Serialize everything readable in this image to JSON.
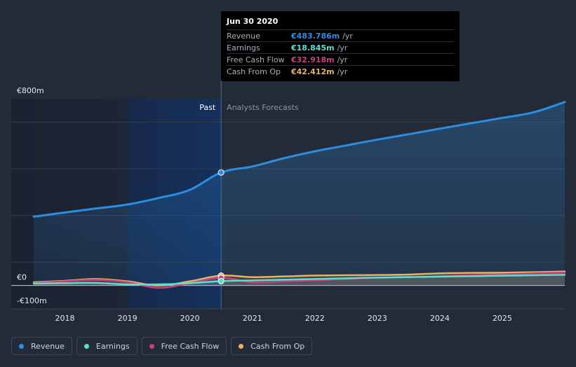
{
  "chart_data": {
    "type": "line",
    "ylim": [
      -100,
      800
    ],
    "y_ticks": [
      {
        "value": 800,
        "label": "€800m"
      },
      {
        "value": 0,
        "label": "€0"
      },
      {
        "value": -100,
        "label": "-€100m"
      }
    ],
    "xlim": [
      2017.5,
      2026.0
    ],
    "x_ticks": [
      2018,
      2019,
      2020,
      2021,
      2022,
      2023,
      2024,
      2025
    ],
    "divider_x": 2020.5,
    "past_label": "Past",
    "forecast_label": "Analysts Forecasts",
    "highlight_x": 2020.5,
    "series": [
      {
        "name": "Revenue",
        "color": "#2d8ee0",
        "fill": true,
        "points": [
          [
            2017.5,
            295
          ],
          [
            2018.0,
            313
          ],
          [
            2018.5,
            330
          ],
          [
            2019.0,
            347
          ],
          [
            2019.5,
            375
          ],
          [
            2020.0,
            410
          ],
          [
            2020.5,
            484
          ],
          [
            2021.0,
            510
          ],
          [
            2021.5,
            545
          ],
          [
            2022.0,
            575
          ],
          [
            2022.5,
            600
          ],
          [
            2023.0,
            625
          ],
          [
            2023.5,
            648
          ],
          [
            2024.0,
            672
          ],
          [
            2024.5,
            695
          ],
          [
            2025.0,
            718
          ],
          [
            2025.5,
            742
          ],
          [
            2026.0,
            786
          ]
        ]
      },
      {
        "name": "Earnings",
        "color": "#58e0cf",
        "fill": false,
        "points": [
          [
            2017.5,
            8
          ],
          [
            2018.0,
            10
          ],
          [
            2018.5,
            11
          ],
          [
            2019.0,
            5
          ],
          [
            2019.5,
            5
          ],
          [
            2020.0,
            10
          ],
          [
            2020.5,
            18.8
          ],
          [
            2021.0,
            22
          ],
          [
            2021.5,
            25
          ],
          [
            2022.0,
            28
          ],
          [
            2022.5,
            31
          ],
          [
            2023.0,
            34
          ],
          [
            2023.5,
            36
          ],
          [
            2024.0,
            38
          ],
          [
            2024.5,
            40
          ],
          [
            2025.0,
            42
          ],
          [
            2025.5,
            44
          ],
          [
            2026.0,
            46
          ]
        ]
      },
      {
        "name": "Free Cash Flow",
        "color": "#c83f7f",
        "fill": false,
        "points": [
          [
            2017.5,
            10
          ],
          [
            2018.0,
            18
          ],
          [
            2018.5,
            24
          ],
          [
            2019.0,
            14
          ],
          [
            2019.5,
            -10
          ],
          [
            2020.0,
            10
          ],
          [
            2020.5,
            32.9
          ],
          [
            2021.0,
            14
          ],
          [
            2021.5,
            18
          ],
          [
            2022.0,
            22
          ],
          [
            2022.5,
            28
          ],
          [
            2023.0,
            33
          ],
          [
            2023.5,
            36
          ],
          [
            2024.0,
            40
          ],
          [
            2024.5,
            44
          ],
          [
            2025.0,
            48
          ],
          [
            2025.5,
            52
          ],
          [
            2026.0,
            55
          ]
        ]
      },
      {
        "name": "Cash From Op",
        "color": "#e8b266",
        "fill": false,
        "points": [
          [
            2017.5,
            14
          ],
          [
            2018.0,
            20
          ],
          [
            2018.5,
            28
          ],
          [
            2019.0,
            18
          ],
          [
            2019.5,
            0
          ],
          [
            2020.0,
            18
          ],
          [
            2020.5,
            42.4
          ],
          [
            2021.0,
            36
          ],
          [
            2021.5,
            39
          ],
          [
            2022.0,
            43
          ],
          [
            2022.5,
            44
          ],
          [
            2023.0,
            45
          ],
          [
            2023.5,
            47
          ],
          [
            2024.0,
            52
          ],
          [
            2024.5,
            54
          ],
          [
            2025.0,
            55
          ],
          [
            2025.5,
            57
          ],
          [
            2026.0,
            60
          ]
        ]
      }
    ]
  },
  "tooltip": {
    "date": "Jun 30 2020",
    "unit": "/yr",
    "rows": [
      {
        "label": "Revenue",
        "value": "€483.786m",
        "color": "#2d8ee0"
      },
      {
        "label": "Earnings",
        "value": "€18.845m",
        "color": "#58e0cf"
      },
      {
        "label": "Free Cash Flow",
        "value": "€32.918m",
        "color": "#c83f7f"
      },
      {
        "label": "Cash From Op",
        "value": "€42.412m",
        "color": "#e8b266"
      }
    ]
  },
  "legend": [
    {
      "label": "Revenue",
      "color": "#2d8ee0"
    },
    {
      "label": "Earnings",
      "color": "#58e0cf"
    },
    {
      "label": "Free Cash Flow",
      "color": "#c83f7f"
    },
    {
      "label": "Cash From Op",
      "color": "#e8b266"
    }
  ]
}
